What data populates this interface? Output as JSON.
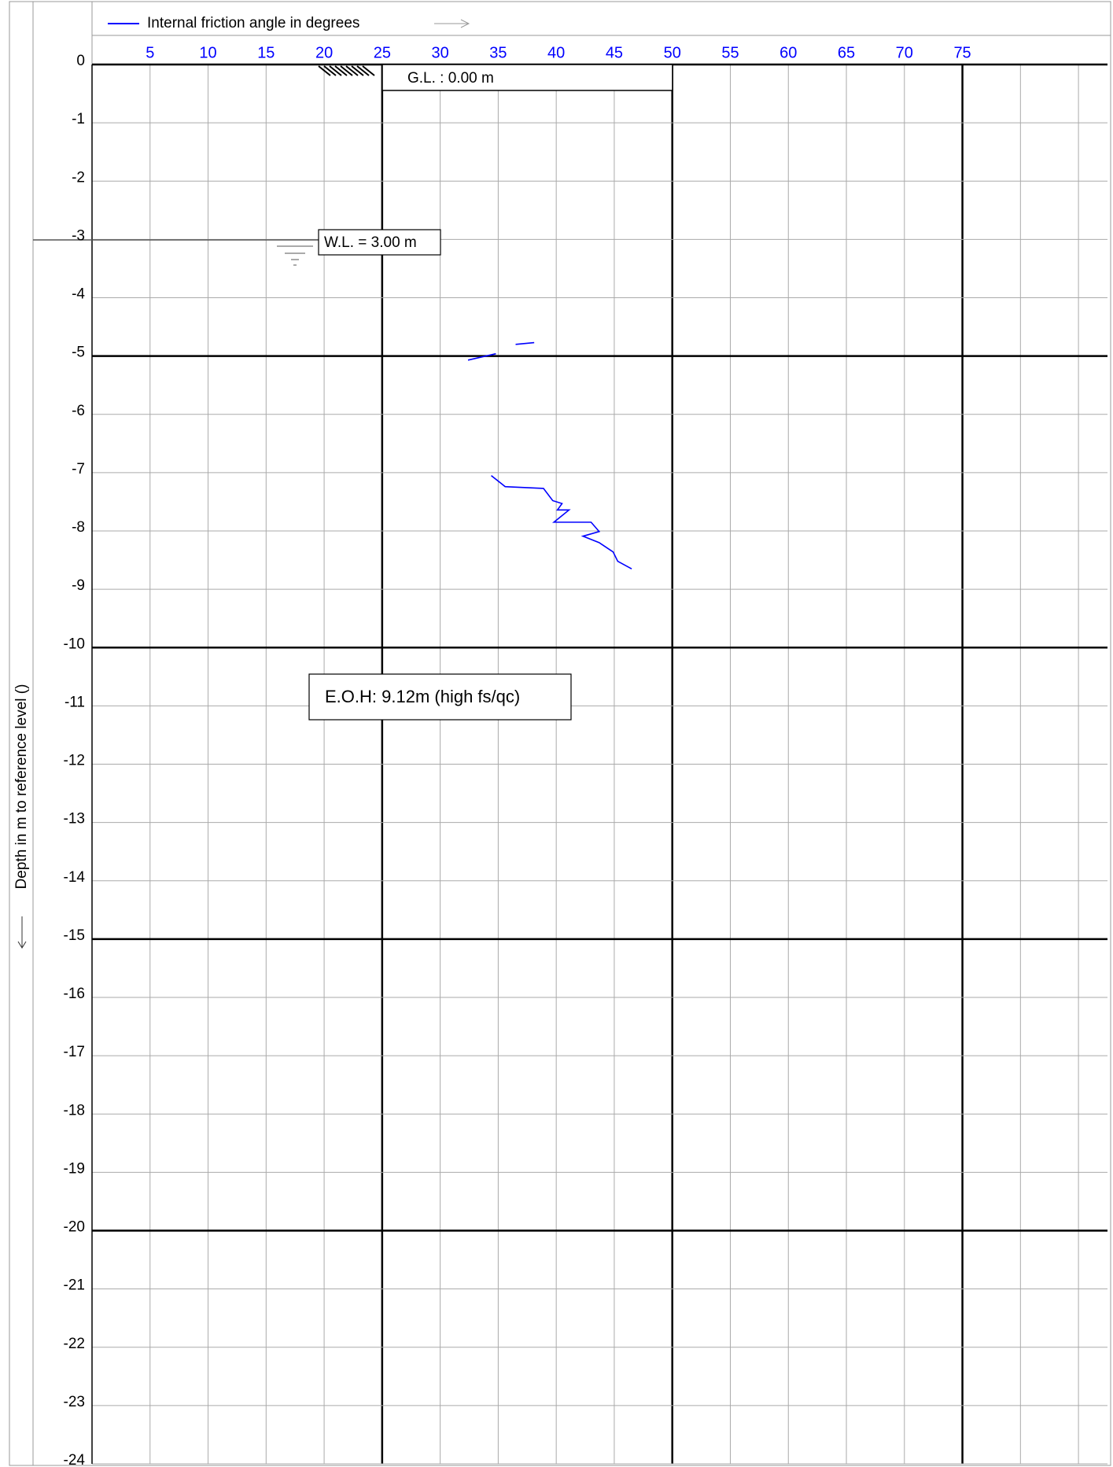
{
  "chart_data": {
    "type": "line",
    "ylabel": "Depth in m to reference level ()",
    "series": [
      {
        "name": "Internal friction angle in degrees",
        "color": "#0000ff",
        "x": [
          36.5,
          38.1,
          null,
          34.8,
          32.4,
          null,
          34.4,
          35.6,
          38.9,
          39.7,
          40.5,
          40.1,
          41.1,
          39.8,
          43.0,
          43.7,
          42.3,
          43.7,
          44.9,
          45.3,
          46.5
        ],
        "values": [
          -4.8,
          -4.77,
          null,
          -4.96,
          -5.07,
          null,
          -7.05,
          -7.24,
          -7.27,
          -7.48,
          -7.53,
          -7.64,
          -7.64,
          -7.85,
          -7.85,
          -8.01,
          -8.09,
          -8.2,
          -8.36,
          -8.52,
          -8.65
        ]
      }
    ],
    "xlim": [
      0,
      87.5
    ],
    "xticks": [
      5,
      10,
      15,
      20,
      25,
      30,
      35,
      40,
      45,
      50,
      55,
      60,
      65,
      70,
      75
    ],
    "xgrid": [
      5,
      10,
      15,
      20,
      25,
      30,
      35,
      40,
      45,
      50,
      55,
      60,
      65,
      70,
      75,
      80,
      85
    ],
    "ylim": [
      -24,
      0
    ],
    "yticks": [
      0,
      -1,
      -2,
      -3,
      -4,
      -5,
      -6,
      -7,
      -8,
      -9,
      -10,
      -11,
      -12,
      -13,
      -14,
      -15,
      -16,
      -17,
      -18,
      -19,
      -20,
      -21,
      -22,
      -23,
      -24
    ],
    "grid": true,
    "annotations": {
      "ground_level": "G.L. :  0.00  m",
      "water_level": "W.L. = 3.00 m",
      "end_of_hole": "E.O.H: 9.12m (high fs/qc)"
    }
  }
}
